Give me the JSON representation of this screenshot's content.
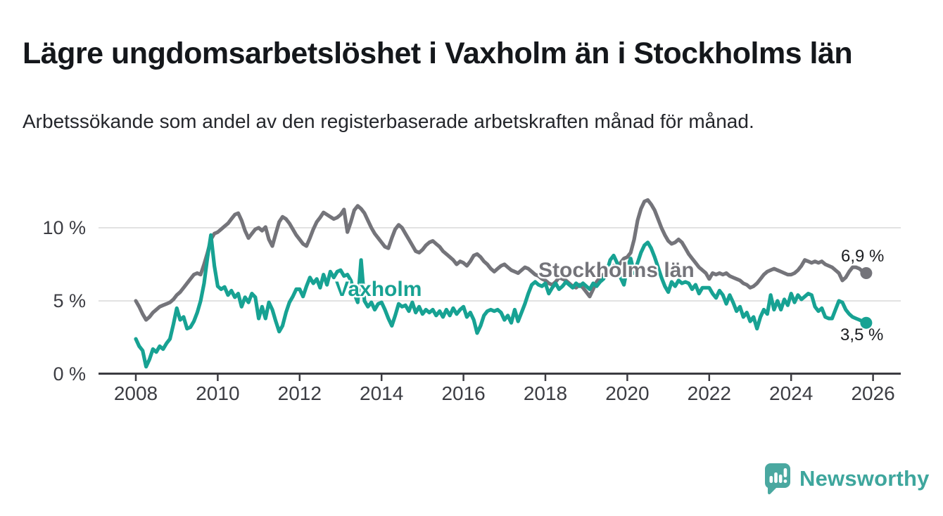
{
  "chart_data": {
    "type": "line",
    "title": "Lägre ungdomsarbetslöshet i Vaxholm än i Stockholms län",
    "subtitle": "Arbetssökande som andel av den registerbaserade arbetskraften månad för månad.",
    "unit": "%",
    "x_axis": {
      "start_year": 2008,
      "resolution": "monthly",
      "ticks": [
        {
          "value": 2008,
          "label": "2008"
        },
        {
          "value": 2010,
          "label": "2010"
        },
        {
          "value": 2012,
          "label": "2012"
        },
        {
          "value": 2014,
          "label": "2014"
        },
        {
          "value": 2016,
          "label": "2016"
        },
        {
          "value": 2018,
          "label": "2018"
        },
        {
          "value": 2020,
          "label": "2020"
        },
        {
          "value": 2022,
          "label": "2022"
        },
        {
          "value": 2024,
          "label": "2024"
        },
        {
          "value": 2026,
          "label": "2026"
        }
      ]
    },
    "y_axis": {
      "min": 0,
      "max": 12,
      "gridlines": true,
      "ticks": [
        {
          "value": 0,
          "label": "0 %"
        },
        {
          "value": 5,
          "label": "5 %"
        },
        {
          "value": 10,
          "label": "10 %"
        }
      ]
    },
    "series": [
      {
        "name": "Stockholms län",
        "color": "#74747a",
        "end_label": "6,9 %",
        "end_value": 6.9,
        "values": [
          5.0,
          4.6,
          4.1,
          3.7,
          3.9,
          4.2,
          4.4,
          4.6,
          4.7,
          4.8,
          4.9,
          5.1,
          5.4,
          5.6,
          5.9,
          6.2,
          6.5,
          6.8,
          6.9,
          6.8,
          7.5,
          8.3,
          9.2,
          9.6,
          9.7,
          9.9,
          10.1,
          10.3,
          10.6,
          10.9,
          11.0,
          10.5,
          9.8,
          9.3,
          9.6,
          9.9,
          10.0,
          9.8,
          10.05,
          9.2,
          8.75,
          9.6,
          10.4,
          10.75,
          10.6,
          10.3,
          9.9,
          9.5,
          9.2,
          8.9,
          8.75,
          9.3,
          9.9,
          10.4,
          10.7,
          11.05,
          10.9,
          10.75,
          10.6,
          10.7,
          10.9,
          11.25,
          9.7,
          10.4,
          11.2,
          11.5,
          11.3,
          11.0,
          10.5,
          10.0,
          9.6,
          9.3,
          9.0,
          8.7,
          8.6,
          9.3,
          9.9,
          10.2,
          10.0,
          9.6,
          9.2,
          8.8,
          8.4,
          8.3,
          8.5,
          8.8,
          9.0,
          9.1,
          8.9,
          8.7,
          8.4,
          8.2,
          8.0,
          7.8,
          7.5,
          7.7,
          7.6,
          7.4,
          7.7,
          8.1,
          8.2,
          8.0,
          7.7,
          7.5,
          7.2,
          7.0,
          7.2,
          7.4,
          7.5,
          7.3,
          7.1,
          7.0,
          6.9,
          7.1,
          7.3,
          7.2,
          7.0,
          6.8,
          6.7,
          6.5,
          6.4,
          6.2,
          6.1,
          6.3,
          6.6,
          6.5,
          6.4,
          6.2,
          6.0,
          5.9,
          6.1,
          5.9,
          5.6,
          5.3,
          5.8,
          6.3,
          6.6,
          6.8,
          7.0,
          7.2,
          7.4,
          7.3,
          7.6,
          7.9,
          8.0,
          8.3,
          9.2,
          10.5,
          11.3,
          11.8,
          11.9,
          11.6,
          11.2,
          10.6,
          10.0,
          9.5,
          9.1,
          8.9,
          9.0,
          9.2,
          9.0,
          8.6,
          8.2,
          7.9,
          7.6,
          7.3,
          7.1,
          6.9,
          6.5,
          6.9,
          6.8,
          6.9,
          6.8,
          6.9,
          6.7,
          6.6,
          6.5,
          6.4,
          6.2,
          6.1,
          5.9,
          6.0,
          6.2,
          6.5,
          6.8,
          7.0,
          7.1,
          7.2,
          7.1,
          7.0,
          6.9,
          6.8,
          6.8,
          6.9,
          7.1,
          7.4,
          7.8,
          7.7,
          7.6,
          7.7,
          7.6,
          7.7,
          7.5,
          7.4,
          7.3,
          7.1,
          6.9,
          6.4,
          6.6,
          7.0,
          7.3,
          7.3,
          7.2,
          7.0,
          6.9
        ]
      },
      {
        "name": "Vaxholm",
        "color": "#17a293",
        "end_label": "3,5 %",
        "end_value": 3.5,
        "values": [
          2.4,
          1.9,
          1.6,
          0.5,
          1.0,
          1.7,
          1.5,
          1.9,
          1.7,
          2.1,
          2.4,
          3.4,
          4.5,
          3.7,
          3.9,
          3.1,
          3.2,
          3.6,
          4.2,
          5.0,
          6.2,
          8.0,
          9.5,
          7.4,
          6.0,
          5.8,
          5.95,
          5.4,
          5.7,
          5.25,
          5.5,
          4.6,
          5.25,
          4.9,
          5.5,
          5.25,
          3.8,
          4.6,
          3.8,
          4.9,
          4.4,
          3.6,
          2.9,
          3.3,
          4.2,
          4.9,
          5.3,
          5.8,
          5.8,
          5.3,
          6.0,
          6.6,
          6.2,
          6.5,
          5.9,
          6.8,
          6.1,
          7.0,
          6.6,
          7.0,
          7.1,
          6.7,
          6.8,
          6.4,
          5.5,
          4.9,
          7.8,
          5.0,
          4.6,
          4.9,
          4.4,
          4.8,
          4.9,
          4.4,
          3.8,
          3.3,
          4.0,
          4.8,
          4.6,
          4.7,
          4.3,
          4.9,
          4.2,
          4.6,
          4.1,
          4.4,
          4.2,
          4.4,
          4.0,
          4.3,
          3.9,
          4.4,
          4.0,
          4.5,
          4.1,
          4.4,
          4.6,
          3.9,
          4.2,
          3.7,
          2.8,
          3.3,
          4.0,
          4.3,
          4.4,
          4.3,
          4.4,
          4.2,
          3.7,
          4.0,
          3.5,
          4.4,
          3.6,
          4.2,
          4.8,
          5.5,
          6.1,
          6.3,
          6.1,
          6.0,
          6.2,
          5.5,
          5.9,
          6.2,
          5.8,
          6.0,
          6.3,
          6.1,
          5.9,
          6.2,
          6.0,
          6.2,
          6.0,
          5.8,
          6.2,
          6.0,
          6.3,
          6.5,
          7.0,
          7.8,
          8.1,
          7.6,
          6.6,
          6.1,
          7.3,
          7.9,
          6.9,
          7.6,
          8.3,
          8.8,
          9.0,
          8.6,
          8.0,
          7.3,
          6.6,
          6.0,
          5.6,
          6.3,
          6.0,
          6.4,
          6.2,
          6.3,
          6.2,
          5.8,
          6.1,
          5.5,
          5.9,
          5.9,
          5.9,
          5.5,
          5.2,
          5.7,
          5.4,
          4.8,
          5.4,
          4.9,
          4.3,
          4.6,
          3.9,
          4.2,
          3.6,
          3.9,
          3.1,
          3.9,
          4.4,
          4.1,
          5.4,
          4.4,
          5.0,
          4.4,
          5.1,
          4.7,
          5.5,
          4.9,
          5.4,
          5.1,
          5.3,
          5.5,
          5.4,
          4.6,
          4.3,
          4.5,
          3.9,
          3.8,
          3.8,
          4.4,
          5.0,
          4.9,
          4.4,
          4.1,
          3.9,
          3.8,
          3.7,
          3.6,
          3.5
        ]
      }
    ],
    "colors": {
      "grid": "#d9d9d9",
      "axis": "#3b3b41",
      "text": "#3c3d43"
    }
  },
  "footer": {
    "brand": "Newsworthy",
    "brand_color": "#3ea69d",
    "logo_icon": "bar-chart-speech-bubble"
  }
}
